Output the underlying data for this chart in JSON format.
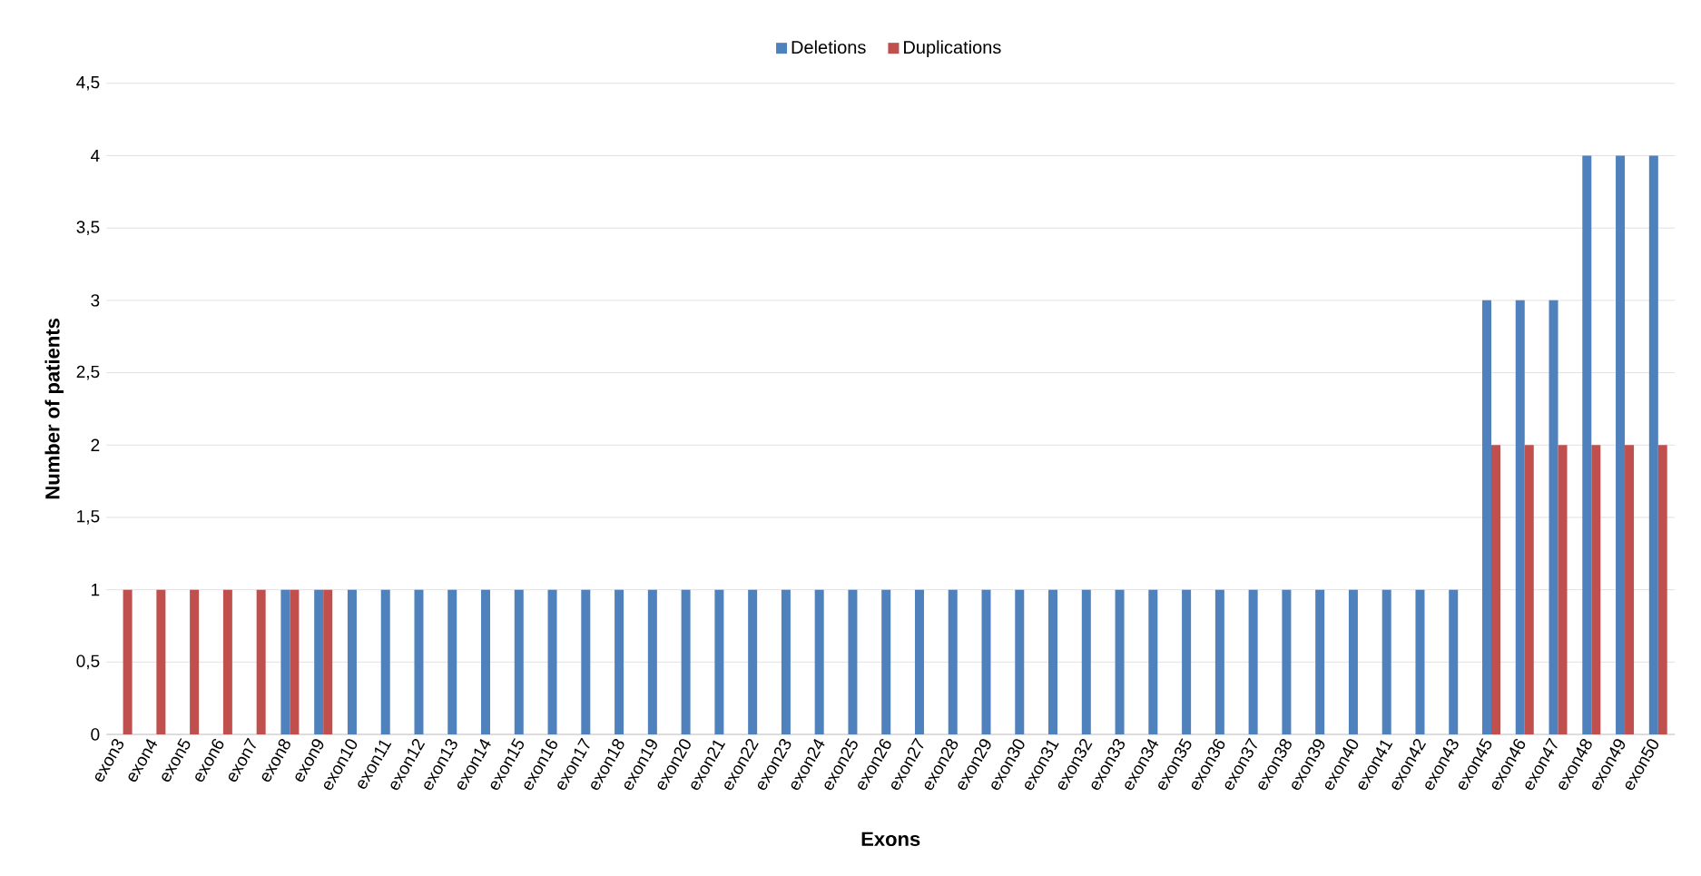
{
  "chart_data": {
    "type": "bar",
    "xlabel": "Exons",
    "ylabel": "Number of patients",
    "categories": [
      "exon3",
      "exon4",
      "exon5",
      "exon6",
      "exon7",
      "exon8",
      "exon9",
      "exon10",
      "exon11",
      "exon12",
      "exon13",
      "exon14",
      "exon15",
      "exon16",
      "exon17",
      "exon18",
      "exon19",
      "exon20",
      "exon21",
      "exon22",
      "exon23",
      "exon24",
      "exon25",
      "exon26",
      "exon27",
      "exon28",
      "exon29",
      "exon30",
      "exon31",
      "exon32",
      "exon33",
      "exon34",
      "exon35",
      "exon36",
      "exon37",
      "exon38",
      "exon39",
      "exon40",
      "exon41",
      "exon42",
      "exon43",
      "exon45",
      "exon46",
      "exon47",
      "exon48",
      "exon49",
      "exon50"
    ],
    "series": [
      {
        "name": "Deletions",
        "color": "#4f81bd",
        "values": [
          0,
          0,
          0,
          0,
          0,
          1,
          1,
          1,
          1,
          1,
          1,
          1,
          1,
          1,
          1,
          1,
          1,
          1,
          1,
          1,
          1,
          1,
          1,
          1,
          1,
          1,
          1,
          1,
          1,
          1,
          1,
          1,
          1,
          1,
          1,
          1,
          1,
          1,
          1,
          1,
          1,
          3,
          3,
          3,
          4,
          4,
          4
        ]
      },
      {
        "name": "Duplications",
        "color": "#c0504d",
        "values": [
          1,
          1,
          1,
          1,
          1,
          1,
          1,
          0,
          0,
          0,
          0,
          0,
          0,
          0,
          0,
          0,
          0,
          0,
          0,
          0,
          0,
          0,
          0,
          0,
          0,
          0,
          0,
          0,
          0,
          0,
          0,
          0,
          0,
          0,
          0,
          0,
          0,
          0,
          0,
          0,
          0,
          2,
          2,
          2,
          2,
          2,
          2
        ]
      }
    ],
    "ylim": [
      0,
      4.5
    ],
    "yticks": [
      0,
      {
        "value": 0.5,
        "label": "0,5"
      },
      1,
      {
        "value": 1.5,
        "label": "1,5"
      },
      2,
      {
        "value": 2.5,
        "label": "2,5"
      },
      3,
      {
        "value": 3.5,
        "label": "3,5"
      },
      4,
      {
        "value": 4.5,
        "label": "4,5"
      }
    ],
    "grid": "y",
    "legend": "top"
  }
}
